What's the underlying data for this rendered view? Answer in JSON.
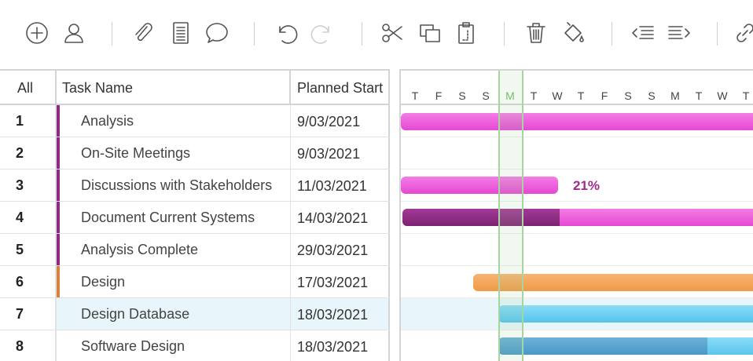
{
  "colors": {
    "analysis": "#8e2a83",
    "analysis_bar": "#ee5fdd",
    "analysis_dark": "#8d2a83",
    "design": "#d98240",
    "design_bar": "#f3a258",
    "design_db_bar": "#66cdf2",
    "software_bar": "#5aa6d4",
    "today": "#a5d6a0",
    "selected_row": "#e8f6fb"
  },
  "toolbar": {
    "icons": [
      "add-icon",
      "user-icon",
      "attachment-icon",
      "document-icon",
      "comment-icon",
      "undo-icon",
      "redo-icon",
      "cut-icon",
      "copy-icon",
      "paste-icon",
      "delete-icon",
      "fill-color-icon",
      "outdent-icon",
      "indent-icon",
      "link-icon"
    ]
  },
  "grid": {
    "headers": {
      "all": "All",
      "task_name": "Task Name",
      "planned_start": "Planned Start"
    },
    "rows": [
      {
        "num": "1",
        "name": "Analysis",
        "start": "9/03/2021"
      },
      {
        "num": "2",
        "name": "On-Site Meetings",
        "start": "9/03/2021"
      },
      {
        "num": "3",
        "name": "Discussions with Stakeholders",
        "start": "11/03/2021"
      },
      {
        "num": "4",
        "name": "Document Current Systems",
        "start": "14/03/2021"
      },
      {
        "num": "5",
        "name": "Analysis Complete",
        "start": "29/03/2021"
      },
      {
        "num": "6",
        "name": "Design",
        "start": "17/03/2021"
      },
      {
        "num": "7",
        "name": "Design Database",
        "start": "18/03/2021"
      },
      {
        "num": "8",
        "name": "Software Design",
        "start": "18/03/2021"
      }
    ]
  },
  "gantt": {
    "days": [
      "T",
      "F",
      "S",
      "S",
      "M",
      "T",
      "W",
      "T",
      "F",
      "S",
      "S",
      "M",
      "T",
      "W",
      "T"
    ],
    "today_label": "M",
    "progress_label": "21%",
    "progress_value": 21
  }
}
